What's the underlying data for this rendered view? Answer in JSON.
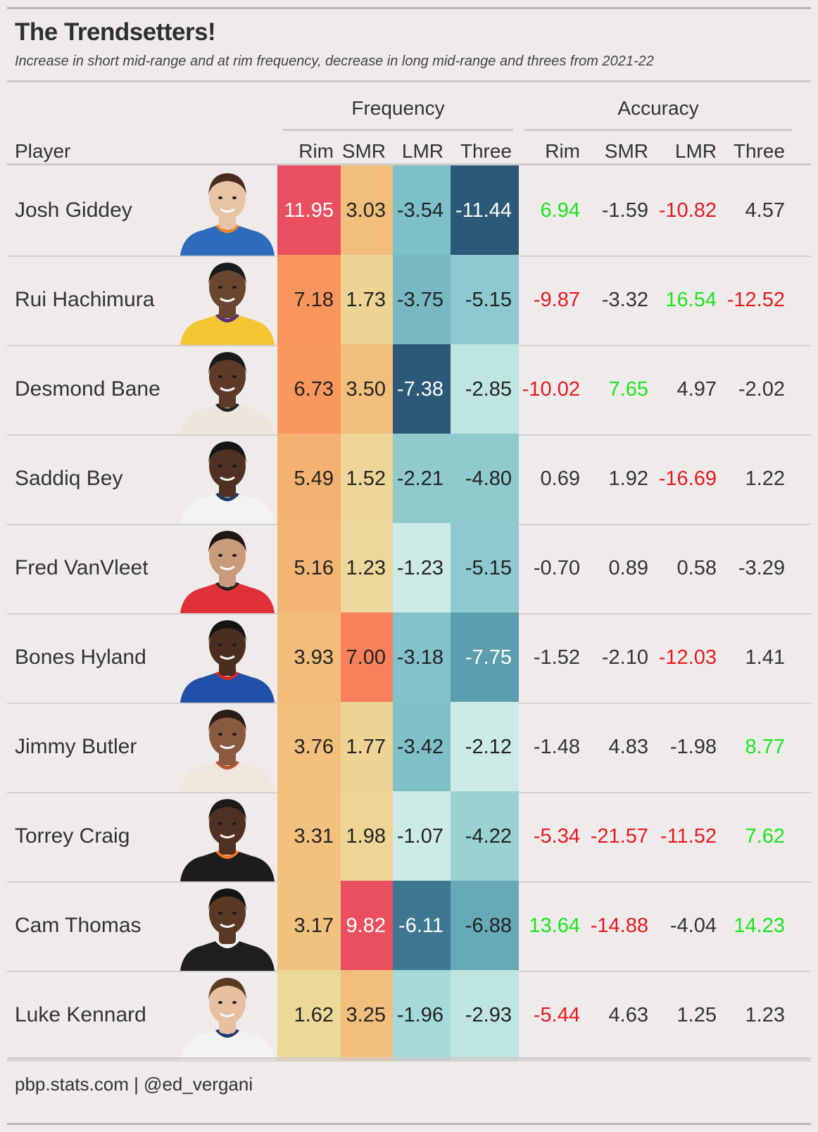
{
  "title": "The Trendsetters!",
  "subtitle": "Increase in short mid-range and at rim frequency, decrease in long mid-range and threes from 2021-22",
  "source": "pbp.stats.com | @ed_vergani",
  "header": {
    "player": "Player",
    "frequency_group": "Frequency",
    "accuracy_group": "Accuracy",
    "frequency_cols": [
      "Rim",
      "SMR",
      "LMR",
      "Three"
    ],
    "accuracy_cols": [
      "Rim",
      "SMR",
      "LMR",
      "Three"
    ]
  },
  "colors": {
    "positive": "#19e619",
    "negative": "#e6191f",
    "neutral": "#333333"
  },
  "chart_data": {
    "type": "table",
    "title": "The Trendsetters!",
    "players": [
      {
        "name": "Josh Giddey",
        "frequency": {
          "Rim": "11.95",
          "SMR": "3.03",
          "LMR": "-3.54",
          "Three": "-11.44"
        },
        "accuracy": {
          "Rim": "6.94",
          "SMR": "-1.59",
          "LMR": "-10.82",
          "Three": "4.57"
        },
        "freq_colors": [
          "#e94f5f",
          "#f2be7c",
          "#7ec0c8",
          "#2c5977"
        ],
        "acc_tone": [
          "pos",
          "neu",
          "neg",
          "neu"
        ],
        "jersey": "#2d6bbd",
        "trim": "#f08a2a",
        "skin": "#e8c4a4",
        "hair": "#4a2c1f"
      },
      {
        "name": "Rui Hachimura",
        "frequency": {
          "Rim": "7.18",
          "SMR": "1.73",
          "LMR": "-3.75",
          "Three": "-5.15"
        },
        "accuracy": {
          "Rim": "-9.87",
          "SMR": "-3.32",
          "LMR": "16.54",
          "Three": "-12.52"
        },
        "freq_colors": [
          "#f8955c",
          "#edd494",
          "#78b8c1",
          "#8dc9ce"
        ],
        "acc_tone": [
          "neg",
          "neu",
          "pos",
          "neg"
        ],
        "jersey": "#f4c634",
        "trim": "#5a2d82",
        "skin": "#6a4530",
        "hair": "#1a1a1a"
      },
      {
        "name": "Desmond Bane",
        "frequency": {
          "Rim": "6.73",
          "SMR": "3.50",
          "LMR": "-7.38",
          "Three": "-2.85"
        },
        "accuracy": {
          "Rim": "-10.02",
          "SMR": "7.65",
          "LMR": "4.97",
          "Three": "-2.02"
        },
        "freq_colors": [
          "#f8985c",
          "#f2be7c",
          "#2c5977",
          "#bfe5e1"
        ],
        "acc_tone": [
          "neg",
          "pos",
          "neu",
          "neu"
        ],
        "jersey": "#ede6dc",
        "trim": "#222222",
        "skin": "#5e3b28",
        "hair": "#1a1a1a"
      },
      {
        "name": "Saddiq Bey",
        "frequency": {
          "Rim": "5.49",
          "SMR": "1.52",
          "LMR": "-2.21",
          "Three": "-4.80"
        },
        "accuracy": {
          "Rim": "0.69",
          "SMR": "1.92",
          "LMR": "-16.69",
          "Three": "1.22"
        },
        "freq_colors": [
          "#f4b272",
          "#edd697",
          "#90cacd",
          "#90cacd"
        ],
        "acc_tone": [
          "neu",
          "neu",
          "neg",
          "neu"
        ],
        "jersey": "#f3f3f3",
        "trim": "#1d3b6e",
        "skin": "#4e3122",
        "hair": "#151515"
      },
      {
        "name": "Fred VanVleet",
        "frequency": {
          "Rim": "5.16",
          "SMR": "1.23",
          "LMR": "-1.23",
          "Three": "-5.15"
        },
        "accuracy": {
          "Rim": "-0.70",
          "SMR": "0.89",
          "LMR": "0.58",
          "Three": "-3.29"
        },
        "freq_colors": [
          "#f4b474",
          "#ecd89a",
          "#cdebe6",
          "#8dc9ce"
        ],
        "acc_tone": [
          "neu",
          "neu",
          "neu",
          "neu"
        ],
        "jersey": "#e0313a",
        "trim": "#222222",
        "skin": "#c99b7a",
        "hair": "#1f1714"
      },
      {
        "name": "Bones Hyland",
        "frequency": {
          "Rim": "3.93",
          "SMR": "7.00",
          "LMR": "-3.18",
          "Three": "-7.75"
        },
        "accuracy": {
          "Rim": "-1.52",
          "SMR": "-2.10",
          "LMR": "-12.03",
          "Three": "1.41"
        },
        "freq_colors": [
          "#f2bd7b",
          "#f8805a",
          "#82c2c9",
          "#5b9eae"
        ],
        "acc_tone": [
          "neu",
          "neu",
          "neg",
          "neu"
        ],
        "jersey": "#2050a8",
        "trim": "#d22a2a",
        "skin": "#4a2e1f",
        "hair": "#141414"
      },
      {
        "name": "Jimmy Butler",
        "frequency": {
          "Rim": "3.76",
          "SMR": "1.77",
          "LMR": "-3.42",
          "Three": "-2.12"
        },
        "accuracy": {
          "Rim": "-1.48",
          "SMR": "4.83",
          "LMR": "-1.98",
          "Three": "8.77"
        },
        "freq_colors": [
          "#f2bf7c",
          "#edd494",
          "#80c1c8",
          "#cdebe6"
        ],
        "acc_tone": [
          "neu",
          "neu",
          "neu",
          "pos"
        ],
        "jersey": "#efe7dc",
        "trim": "#b5542a",
        "skin": "#8a5a3e",
        "hair": "#2a1d16"
      },
      {
        "name": "Torrey Craig",
        "frequency": {
          "Rim": "3.31",
          "SMR": "1.98",
          "LMR": "-1.07",
          "Three": "-4.22"
        },
        "accuracy": {
          "Rim": "-5.34",
          "SMR": "-21.57",
          "LMR": "-11.52",
          "Three": "7.62"
        },
        "freq_colors": [
          "#f2c17e",
          "#ecd595",
          "#cdebe6",
          "#9ad1d1"
        ],
        "acc_tone": [
          "neg",
          "neg",
          "neg",
          "pos"
        ],
        "jersey": "#1c1c1c",
        "trim": "#f07a22",
        "skin": "#4e3122",
        "hair": "#1a1a1a"
      },
      {
        "name": "Cam Thomas",
        "frequency": {
          "Rim": "3.17",
          "SMR": "9.82",
          "LMR": "-6.11",
          "Three": "-6.88"
        },
        "accuracy": {
          "Rim": "13.64",
          "SMR": "-14.88",
          "LMR": "-4.04",
          "Three": "14.23"
        },
        "freq_colors": [
          "#f0c27f",
          "#e94f5f",
          "#3f7791",
          "#67a9b6"
        ],
        "acc_tone": [
          "pos",
          "neg",
          "neu",
          "pos"
        ],
        "jersey": "#1e1e1e",
        "trim": "#f3f3f3",
        "skin": "#5a3826",
        "hair": "#141414"
      },
      {
        "name": "Luke Kennard",
        "frequency": {
          "Rim": "1.62",
          "SMR": "3.25",
          "LMR": "-1.96",
          "Three": "-2.93"
        },
        "accuracy": {
          "Rim": "-5.44",
          "SMR": "4.63",
          "LMR": "1.25",
          "Three": "1.23"
        },
        "freq_colors": [
          "#ecd997",
          "#f2be7c",
          "#a6dad9",
          "#bfe5e1"
        ],
        "acc_tone": [
          "neg",
          "neu",
          "neu",
          "neu"
        ],
        "jersey": "#f3f3f3",
        "trim": "#1d3b6e",
        "skin": "#e6c0a0",
        "hair": "#5a3b22"
      }
    ]
  }
}
